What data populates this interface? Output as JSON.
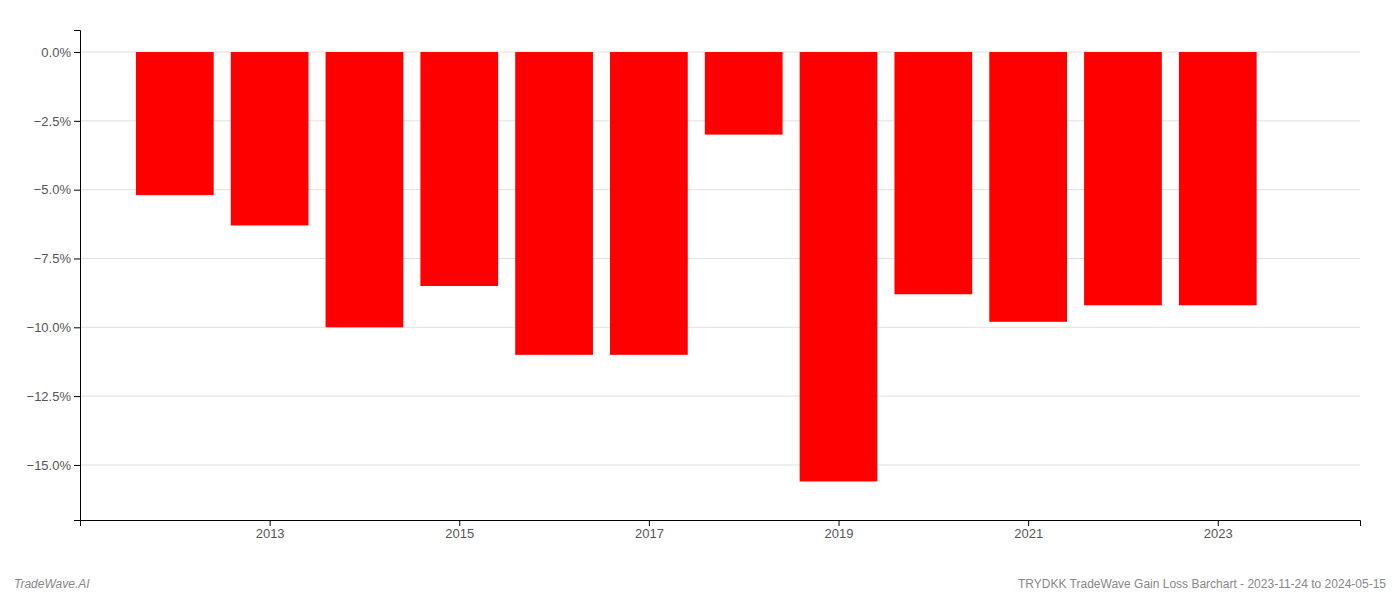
{
  "chart_data": {
    "type": "bar",
    "x": [
      2012,
      2013,
      2014,
      2015,
      2016,
      2017,
      2018,
      2019,
      2020,
      2021,
      2022,
      2023
    ],
    "values": [
      -5.2,
      -6.3,
      -10.0,
      -8.5,
      -11.0,
      -11.0,
      -3.0,
      -15.6,
      -8.8,
      -9.8,
      -9.2,
      -9.2
    ],
    "color": "#ff0000",
    "xlim": [
      2011.0,
      2024.5
    ],
    "xticks": [
      2013,
      2015,
      2017,
      2019,
      2021,
      2023
    ],
    "ylim": [
      -17.0,
      0.8
    ],
    "yticks": [
      {
        "value": 0.0,
        "label": "0.0%"
      },
      {
        "value": -2.5,
        "label": "−2.5%"
      },
      {
        "value": -5.0,
        "label": "−5.0%"
      },
      {
        "value": -7.5,
        "label": "−7.5%"
      },
      {
        "value": -10.0,
        "label": "−10.0%"
      },
      {
        "value": -12.5,
        "label": "−12.5%"
      },
      {
        "value": -15.0,
        "label": "−15.0%"
      }
    ],
    "grid": true,
    "annotations": [
      "TradeWave.AI",
      "TRYDKK TradeWave Gain Loss Barchart - 2023-11-24 to 2024-05-15"
    ]
  }
}
